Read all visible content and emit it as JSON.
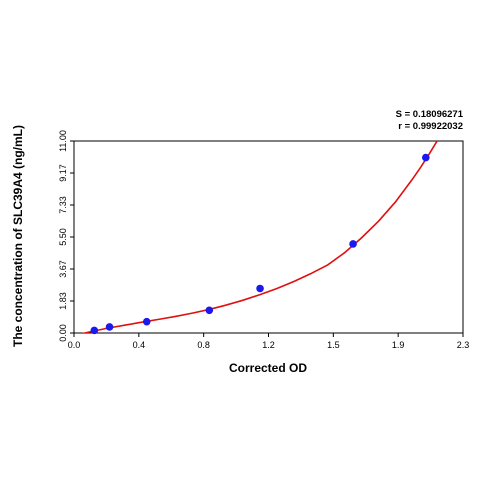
{
  "chart_data": {
    "type": "scatter",
    "title": "",
    "xlabel": "Corrected OD",
    "ylabel": "The concentration of SLC39A4 (ng/mL)",
    "xlim": [
      0.0,
      2.3
    ],
    "ylim": [
      0.0,
      11.0
    ],
    "x_ticks": [
      "0.0",
      "0.4",
      "0.8",
      "1.2",
      "1.5",
      "1.9",
      "2.3"
    ],
    "y_ticks": [
      "0.00",
      "1.83",
      "3.67",
      "5.50",
      "7.33",
      "9.17",
      "11.00"
    ],
    "grid": false,
    "stats": {
      "s": "S = 0.18096271",
      "r": "r = 0.99922032"
    },
    "series": [
      {
        "type": "scatter",
        "color": "#1a1aee",
        "points": [
          {
            "x": 0.12,
            "y": 0.15
          },
          {
            "x": 0.21,
            "y": 0.35
          },
          {
            "x": 0.43,
            "y": 0.65
          },
          {
            "x": 0.8,
            "y": 1.3
          },
          {
            "x": 1.1,
            "y": 2.55
          },
          {
            "x": 1.65,
            "y": 5.1
          },
          {
            "x": 2.08,
            "y": 10.05
          }
        ]
      },
      {
        "type": "line",
        "color": "#e01010",
        "points": [
          {
            "x": 0.0,
            "y": -0.15
          },
          {
            "x": 0.1,
            "y": 0.08
          },
          {
            "x": 0.2,
            "y": 0.28
          },
          {
            "x": 0.3,
            "y": 0.45
          },
          {
            "x": 0.4,
            "y": 0.62
          },
          {
            "x": 0.5,
            "y": 0.78
          },
          {
            "x": 0.6,
            "y": 0.95
          },
          {
            "x": 0.7,
            "y": 1.14
          },
          {
            "x": 0.8,
            "y": 1.35
          },
          {
            "x": 0.9,
            "y": 1.6
          },
          {
            "x": 1.0,
            "y": 1.88
          },
          {
            "x": 1.1,
            "y": 2.2
          },
          {
            "x": 1.2,
            "y": 2.55
          },
          {
            "x": 1.3,
            "y": 2.95
          },
          {
            "x": 1.4,
            "y": 3.4
          },
          {
            "x": 1.5,
            "y": 3.9
          },
          {
            "x": 1.6,
            "y": 4.6
          },
          {
            "x": 1.7,
            "y": 5.45
          },
          {
            "x": 1.8,
            "y": 6.4
          },
          {
            "x": 1.9,
            "y": 7.5
          },
          {
            "x": 2.0,
            "y": 8.8
          },
          {
            "x": 2.05,
            "y": 9.5
          },
          {
            "x": 2.1,
            "y": 10.25
          },
          {
            "x": 2.15,
            "y": 11.05
          }
        ]
      }
    ]
  }
}
